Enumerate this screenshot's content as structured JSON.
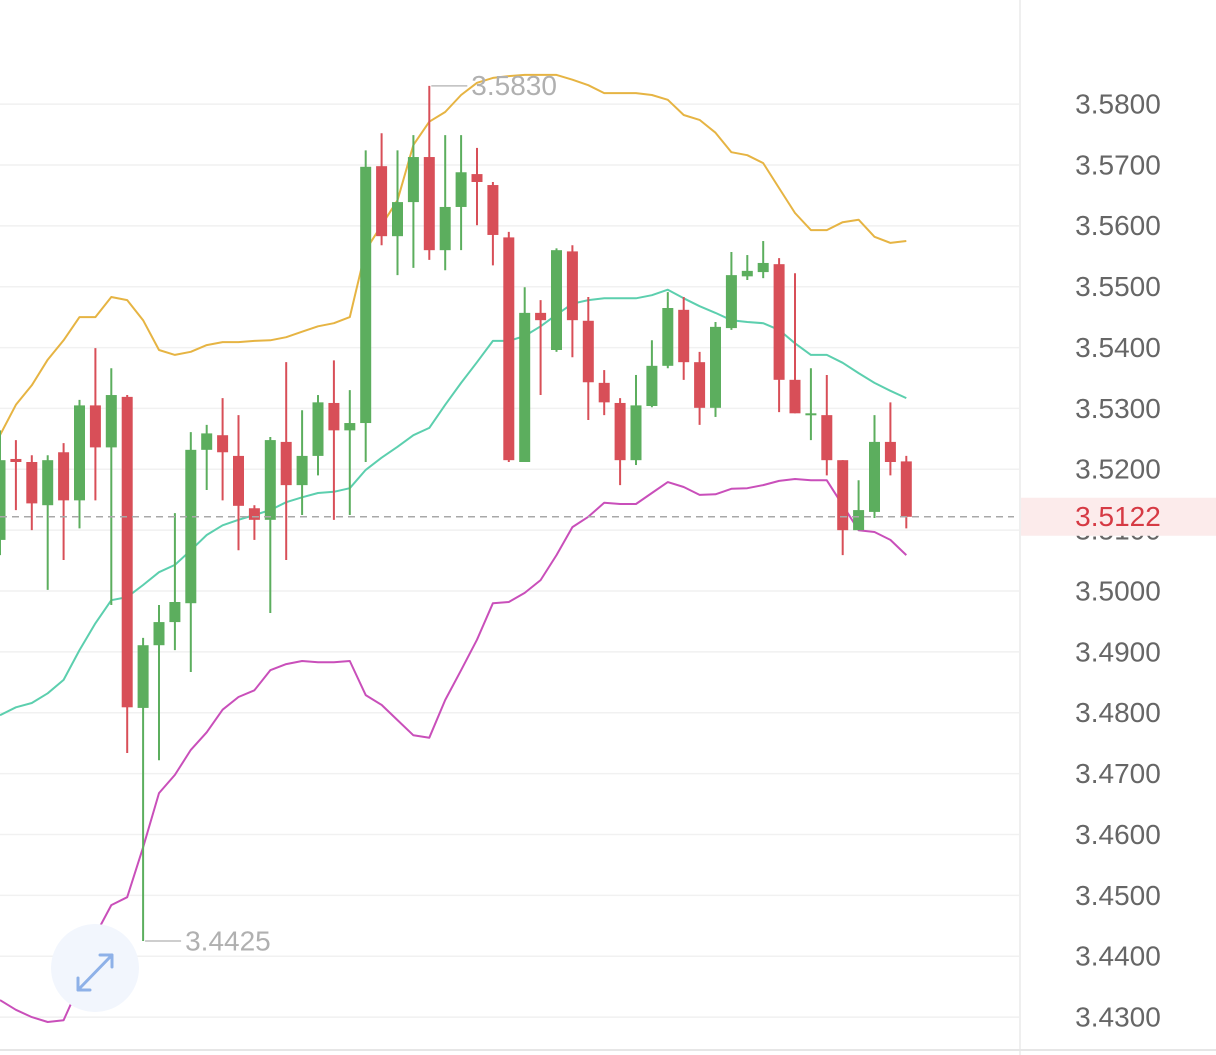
{
  "chart_data": {
    "type": "candlestick",
    "ylim": [
      3.4246,
      3.5971
    ],
    "yticks": [
      {
        "value": 3.43,
        "label": "3.4300"
      },
      {
        "value": 3.44,
        "label": "3.4400"
      },
      {
        "value": 3.45,
        "label": "3.4500"
      },
      {
        "value": 3.46,
        "label": "3.4600"
      },
      {
        "value": 3.47,
        "label": "3.4700"
      },
      {
        "value": 3.48,
        "label": "3.4800"
      },
      {
        "value": 3.49,
        "label": "3.4900"
      },
      {
        "value": 3.5,
        "label": "3.5000"
      },
      {
        "value": 3.51,
        "label": "3.5100"
      },
      {
        "value": 3.52,
        "label": "3.5200"
      },
      {
        "value": 3.53,
        "label": "3.5300"
      },
      {
        "value": 3.54,
        "label": "3.5400"
      },
      {
        "value": 3.55,
        "label": "3.5500"
      },
      {
        "value": 3.56,
        "label": "3.5600"
      },
      {
        "value": 3.57,
        "label": "3.5700"
      },
      {
        "value": 3.58,
        "label": "3.5800"
      }
    ],
    "grid": true,
    "up_color": "#5cae5e",
    "down_color": "#d84f58",
    "open": [
      3.5084,
      3.5217,
      3.5212,
      3.5141,
      3.5228,
      3.5149,
      3.5305,
      3.5236,
      3.5319,
      3.4808,
      3.4911,
      3.4949,
      3.498,
      3.5232,
      3.5256,
      3.5222,
      3.5136,
      3.5117,
      3.5245,
      3.5174,
      3.5222,
      3.5309,
      3.5264,
      3.5276,
      3.5698,
      3.5583,
      3.5639,
      3.5713,
      3.556,
      3.5631,
      3.5685,
      3.5667,
      3.5581,
      3.5212,
      3.5457,
      3.5396,
      3.5558,
      3.5444,
      3.5342,
      3.5309,
      3.5215,
      3.5304,
      3.537,
      3.5462,
      3.5376,
      3.5301,
      3.5432,
      3.5517,
      3.5524,
      3.5537,
      3.5347,
      3.5291,
      3.5289,
      3.5215,
      3.51,
      3.513,
      3.5245,
      3.5213
    ],
    "high": [
      3.5264,
      3.5248,
      3.5223,
      3.5223,
      3.5243,
      3.5314,
      3.5399,
      3.5366,
      3.5322,
      3.4923,
      3.4977,
      3.5128,
      3.5261,
      3.5273,
      3.5317,
      3.5289,
      3.5141,
      3.5253,
      3.5376,
      3.5297,
      3.5322,
      3.5379,
      3.533,
      3.5724,
      3.5752,
      3.5724,
      3.5749,
      3.583,
      3.5749,
      3.5749,
      3.5728,
      3.5672,
      3.559,
      3.5499,
      3.5478,
      3.5563,
      3.5568,
      3.5483,
      3.5363,
      3.5317,
      3.5355,
      3.5412,
      3.5491,
      3.5483,
      3.5393,
      3.5442,
      3.5557,
      3.5552,
      3.5575,
      3.5547,
      3.5522,
      3.5366,
      3.5355,
      3.5215,
      3.5182,
      3.5289,
      3.531,
      3.5222
    ],
    "low": [
      3.5059,
      3.5133,
      3.51,
      3.5002,
      3.5051,
      3.5103,
      3.5149,
      3.4977,
      3.4734,
      3.4425,
      3.4722,
      3.4903,
      3.4867,
      3.5166,
      3.5149,
      3.5067,
      3.5084,
      3.4964,
      3.5051,
      3.5125,
      3.519,
      3.5117,
      3.5125,
      3.5212,
      3.5568,
      3.5519,
      3.5531,
      3.5544,
      3.5527,
      3.556,
      3.5601,
      3.5535,
      3.5212,
      3.5212,
      3.5322,
      3.5393,
      3.5384,
      3.5281,
      3.5289,
      3.5174,
      3.5207,
      3.5302,
      3.5366,
      3.5347,
      3.5273,
      3.5286,
      3.5429,
      3.5511,
      3.5514,
      3.5294,
      3.5292,
      3.5248,
      3.519,
      3.5059,
      3.51,
      3.512,
      3.519,
      3.5103
    ],
    "close": [
      3.5215,
      3.5212,
      3.5144,
      3.5215,
      3.5149,
      3.5305,
      3.5236,
      3.5322,
      3.4809,
      3.4911,
      3.4949,
      3.4982,
      3.5232,
      3.5259,
      3.5228,
      3.514,
      3.5117,
      3.5248,
      3.5174,
      3.5222,
      3.531,
      3.5264,
      3.5276,
      3.5697,
      3.5583,
      3.5639,
      3.5713,
      3.556,
      3.5631,
      3.5688,
      3.5672,
      3.5585,
      3.5215,
      3.5457,
      3.5445,
      3.556,
      3.5445,
      3.5343,
      3.531,
      3.5215,
      3.5305,
      3.537,
      3.5465,
      3.5376,
      3.5301,
      3.5434,
      3.5519,
      3.5526,
      3.5539,
      3.5347,
      3.5292,
      3.5292,
      3.5215,
      3.51,
      3.5133,
      3.5245,
      3.5212,
      3.5122
    ],
    "series": [
      {
        "color": "#e6b443",
        "values": [
          3.5256,
          3.5306,
          3.5338,
          3.538,
          3.5412,
          3.545,
          3.545,
          3.5483,
          3.5478,
          3.5445,
          3.5396,
          3.5388,
          3.5393,
          3.5404,
          3.5409,
          3.5409,
          3.5411,
          3.5412,
          3.5417,
          3.5426,
          3.5435,
          3.544,
          3.545,
          3.556,
          3.5601,
          3.5642,
          3.5733,
          3.5771,
          3.5787,
          3.5815,
          3.5835,
          3.5843,
          3.5846,
          3.5848,
          3.5848,
          3.5848,
          3.584,
          3.5831,
          3.5818,
          3.5818,
          3.5818,
          3.5815,
          3.5807,
          3.5782,
          3.5774,
          3.5753,
          3.5721,
          3.5716,
          3.5703,
          3.5662,
          3.5621,
          3.5593,
          3.5593,
          3.5606,
          3.561,
          3.5582,
          3.5572,
          3.5575
        ]
      },
      {
        "color": "#5ccfae",
        "values": [
          3.4796,
          3.4809,
          3.4816,
          3.4832,
          3.4854,
          3.4903,
          3.4947,
          3.4985,
          3.499,
          3.501,
          3.5031,
          3.5043,
          3.5067,
          3.5092,
          3.5108,
          3.5117,
          3.5125,
          3.5133,
          3.5146,
          3.5154,
          3.5161,
          3.5163,
          3.5169,
          3.5199,
          3.5219,
          3.5237,
          3.5256,
          3.5268,
          3.5306,
          3.5342,
          3.5376,
          3.5411,
          3.5411,
          3.5419,
          3.5435,
          3.5454,
          3.5472,
          3.5478,
          3.5481,
          3.5481,
          3.5481,
          3.5486,
          3.5495,
          3.5481,
          3.5468,
          3.5457,
          3.5445,
          3.5442,
          3.544,
          3.5429,
          3.5407,
          3.5388,
          3.5388,
          3.5375,
          3.5358,
          3.5342,
          3.5329,
          3.5317
        ]
      },
      {
        "color": "#c94fba",
        "values": [
          3.4328,
          3.4312,
          3.43,
          3.4292,
          3.4295,
          3.4353,
          3.4435,
          3.4484,
          3.4497,
          3.4579,
          3.4668,
          3.4698,
          3.4739,
          3.4768,
          3.4805,
          3.4826,
          3.4837,
          3.487,
          3.488,
          3.4885,
          3.4883,
          3.4883,
          3.4885,
          3.4829,
          3.4813,
          3.4788,
          3.4763,
          3.4759,
          3.4821,
          3.487,
          3.492,
          3.498,
          3.4982,
          3.4997,
          3.5018,
          3.5059,
          3.5105,
          3.5122,
          3.5145,
          3.5143,
          3.5143,
          3.5161,
          3.5179,
          3.5171,
          3.5158,
          3.5159,
          3.5168,
          3.5169,
          3.5174,
          3.5181,
          3.5184,
          3.5182,
          3.5182,
          3.5141,
          3.51,
          3.5097,
          3.5084,
          3.5059
        ]
      }
    ],
    "annotations": [
      {
        "value": 3.583,
        "label": "3.5830",
        "index": 27
      },
      {
        "value": 3.4425,
        "label": "3.4425",
        "index": 9
      }
    ],
    "current_price": {
      "value": 3.5122,
      "label": "3.5122"
    }
  }
}
